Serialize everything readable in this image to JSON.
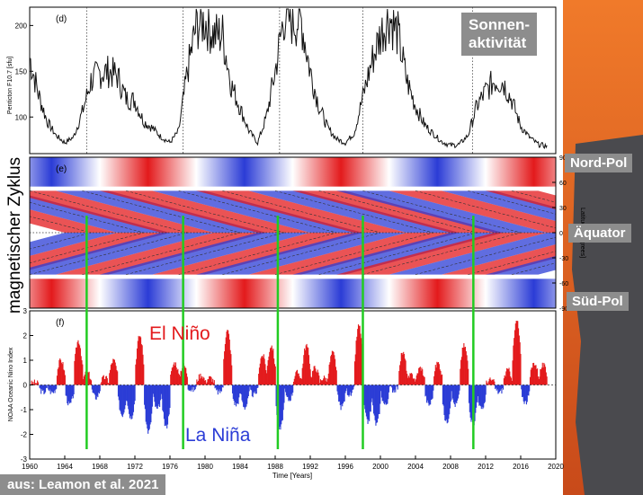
{
  "panels": {
    "d_tag": "(d)",
    "e_tag": "(e)",
    "f_tag": "(f)",
    "d_ylabel": "Penticton F10.7 [sfu]",
    "e_ylabel": "Latitude [degrees]",
    "f_ylabel": "NOAA Oceanic Nino Index",
    "xlabel": "Time [Years]"
  },
  "overlay": {
    "sonne": "Sonnen-\naktivität",
    "zyklus": "magnetischer Zyklus",
    "nord": "Nord-Pol",
    "aequator": "Äquator",
    "sued": "Süd-Pol",
    "elnino": "El Niño",
    "lanina": "La Niña",
    "source": "aus: Leamon et al. 2021"
  },
  "colors": {
    "positive": "#e31a1c",
    "negative": "#2b3cd6",
    "terminator": "#22cc22",
    "elnino_text": "#e31a1c",
    "lanina_text": "#2b3cd6"
  },
  "chart_data": [
    {
      "type": "line",
      "panel": "d",
      "ylabel": "Penticton F10.7 [sfu]",
      "ylim": [
        60,
        220
      ],
      "yticks": [
        100,
        150,
        200
      ],
      "x": [
        1960,
        1961,
        1962,
        1963,
        1964,
        1965,
        1966,
        1967,
        1968,
        1969,
        1970,
        1971,
        1972,
        1973,
        1974,
        1975,
        1976,
        1977,
        1978,
        1979,
        1980,
        1981,
        1982,
        1983,
        1984,
        1985,
        1986,
        1987,
        1988,
        1989,
        1990,
        1991,
        1992,
        1993,
        1994,
        1995,
        1996,
        1997,
        1998,
        1999,
        2000,
        2001,
        2002,
        2003,
        2004,
        2005,
        2006,
        2007,
        2008,
        2009,
        2010,
        2011,
        2012,
        2013,
        2014,
        2015,
        2016,
        2017,
        2018,
        2019
      ],
      "series": [
        {
          "values": [
            165,
            125,
            95,
            80,
            72,
            78,
            105,
            140,
            148,
            150,
            145,
            120,
            118,
            95,
            88,
            78,
            72,
            85,
            150,
            200,
            205,
            190,
            190,
            135,
            110,
            85,
            72,
            100,
            150,
            210,
            205,
            205,
            150,
            112,
            88,
            76,
            72,
            82,
            122,
            160,
            190,
            210,
            190,
            140,
            112,
            92,
            82,
            73,
            69,
            70,
            80,
            112,
            128,
            140,
            138,
            118,
            90,
            78,
            70,
            68
          ]
        }
      ],
      "dotted_verticals": [
        1966.5,
        1977.5,
        1988.5,
        1998.0,
        2010.5
      ]
    },
    {
      "type": "heatmap",
      "panel": "e",
      "ylabel": "Latitude [degrees]",
      "ylim": [
        -90,
        90
      ],
      "yticks": [
        -90,
        -60,
        -30,
        0,
        30,
        60,
        90
      ]
    },
    {
      "type": "area",
      "panel": "f",
      "ylabel": "NOAA Oceanic Nino Index",
      "xlabel": "Time [Years]",
      "ylim": [
        -3,
        3
      ],
      "yticks": [
        -3,
        -2,
        -1,
        0,
        1,
        2,
        3
      ],
      "xticks": [
        1960,
        1964,
        1968,
        1972,
        1976,
        1980,
        1984,
        1988,
        1992,
        1996,
        2000,
        2004,
        2008,
        2012,
        2016,
        2020
      ],
      "x": [
        1960,
        1961,
        1962,
        1963,
        1964,
        1965,
        1966,
        1967,
        1968,
        1969,
        1970,
        1971,
        1972,
        1973,
        1974,
        1975,
        1976,
        1977,
        1978,
        1979,
        1980,
        1981,
        1982,
        1983,
        1984,
        1985,
        1986,
        1987,
        1988,
        1989,
        1990,
        1991,
        1992,
        1993,
        1994,
        1995,
        1996,
        1997,
        1998,
        1999,
        2000,
        2001,
        2002,
        2003,
        2004,
        2005,
        2006,
        2007,
        2008,
        2009,
        2010,
        2011,
        2012,
        2013,
        2014,
        2015,
        2016,
        2017,
        2018,
        2019
      ],
      "series": [
        {
          "values": [
            0.1,
            -0.3,
            -0.3,
            1.0,
            -0.8,
            1.8,
            0.5,
            -0.5,
            0.3,
            1.0,
            -1.2,
            -1.3,
            2.0,
            -1.9,
            -1.0,
            -1.7,
            0.9,
            0.8,
            -0.2,
            0.4,
            0.3,
            -0.3,
            2.2,
            -0.8,
            -0.9,
            -0.4,
            1.2,
            1.6,
            -1.8,
            -0.6,
            0.5,
            1.6,
            0.7,
            0.3,
            1.3,
            -0.9,
            -0.4,
            2.4,
            -1.5,
            -1.6,
            -0.8,
            -0.2,
            1.3,
            0.4,
            0.7,
            -0.8,
            0.9,
            -1.5,
            -0.8,
            1.6,
            -1.6,
            -1.0,
            0.2,
            -0.3,
            0.6,
            2.6,
            -0.7,
            0.9,
            0.8,
            0.5
          ]
        }
      ],
      "terminators": [
        1966.5,
        1977.5,
        1988.3,
        1998.0,
        2010.6
      ]
    }
  ]
}
